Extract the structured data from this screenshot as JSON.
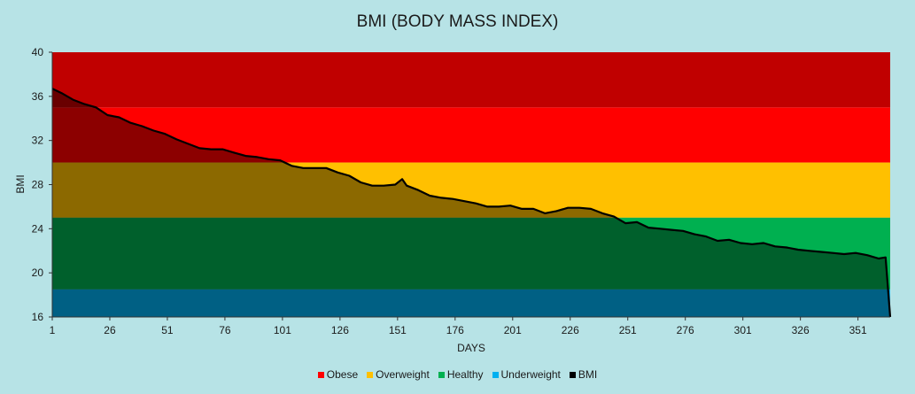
{
  "chart_data": {
    "type": "line",
    "title": "BMI (BODY MASS INDEX)",
    "xlabel": "DAYS",
    "ylabel": "BMI",
    "xlim": [
      1,
      365
    ],
    "ylim": [
      16,
      40
    ],
    "x_ticks": [
      1,
      26,
      51,
      76,
      101,
      126,
      151,
      176,
      201,
      226,
      251,
      276,
      301,
      326,
      351
    ],
    "y_ticks": [
      16,
      20,
      24,
      28,
      32,
      36,
      40
    ],
    "grid": false,
    "legend_position": "bottom",
    "bands": [
      {
        "name": "Obese",
        "from": 35,
        "to": 40,
        "color": "#c00000"
      },
      {
        "name": "Obese",
        "from": 30,
        "to": 35,
        "color": "#ff0000"
      },
      {
        "name": "Overweight",
        "from": 25,
        "to": 30,
        "color": "#ffc000"
      },
      {
        "name": "Healthy",
        "from": 18.5,
        "to": 25,
        "color": "#00b050"
      },
      {
        "name": "Underweight",
        "from": 16,
        "to": 18.5,
        "color": "#00b0f0"
      }
    ],
    "legend": [
      {
        "name": "Obese",
        "color": "#ff0000"
      },
      {
        "name": "Overweight",
        "color": "#ffc000"
      },
      {
        "name": "Healthy",
        "color": "#00b050"
      },
      {
        "name": "Underweight",
        "color": "#00b0f0"
      },
      {
        "name": "BMI",
        "color": "#000000"
      }
    ],
    "series": [
      {
        "name": "BMI",
        "color": "#000000",
        "x": [
          1,
          5,
          10,
          15,
          20,
          25,
          30,
          35,
          40,
          45,
          50,
          55,
          60,
          65,
          70,
          75,
          80,
          85,
          90,
          95,
          100,
          105,
          110,
          115,
          120,
          125,
          130,
          135,
          140,
          145,
          150,
          153,
          155,
          160,
          165,
          170,
          175,
          180,
          185,
          190,
          195,
          200,
          205,
          210,
          215,
          220,
          225,
          230,
          235,
          240,
          245,
          250,
          255,
          260,
          265,
          270,
          275,
          280,
          285,
          290,
          295,
          300,
          305,
          310,
          315,
          320,
          325,
          330,
          335,
          340,
          345,
          350,
          355,
          360,
          363,
          365
        ],
        "y": [
          36.7,
          36.3,
          35.7,
          35.3,
          35.0,
          34.3,
          34.1,
          33.6,
          33.3,
          32.9,
          32.6,
          32.1,
          31.7,
          31.3,
          31.2,
          31.2,
          30.9,
          30.6,
          30.5,
          30.3,
          30.2,
          29.7,
          29.5,
          29.5,
          29.5,
          29.1,
          28.8,
          28.2,
          27.9,
          27.9,
          28.0,
          28.5,
          27.9,
          27.5,
          27.0,
          26.8,
          26.7,
          26.5,
          26.3,
          26.0,
          26.0,
          26.1,
          25.8,
          25.8,
          25.4,
          25.6,
          25.9,
          25.9,
          25.8,
          25.4,
          25.1,
          24.5,
          24.6,
          24.1,
          24.0,
          23.9,
          23.8,
          23.5,
          23.3,
          22.9,
          23.0,
          22.7,
          22.6,
          22.7,
          22.4,
          22.3,
          22.1,
          22.0,
          21.9,
          21.8,
          21.7,
          21.8,
          21.6,
          21.3,
          21.4,
          16.0
        ]
      }
    ]
  }
}
